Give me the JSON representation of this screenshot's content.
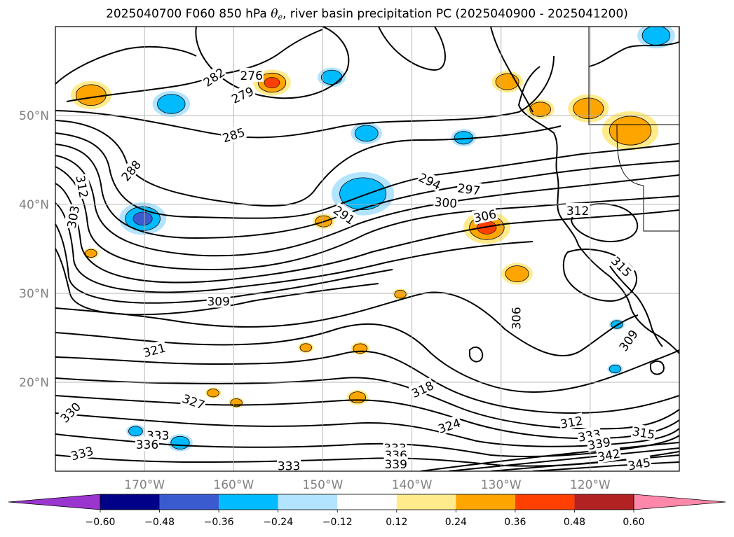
{
  "title": {
    "prefix": "2025040700 F060 850 hPa ",
    "theta": "θ",
    "sub": "e",
    "suffix": ", river basin precipitation PC (2025040900 - 2025041200)"
  },
  "chart_data": {
    "type": "contour-map",
    "projection": "PlateCarree",
    "lon_range": [
      -180,
      -110
    ],
    "lat_range": [
      10,
      60
    ],
    "lon_ticks": [
      {
        "lon": -170,
        "label": "170°W"
      },
      {
        "lon": -160,
        "label": "160°W"
      },
      {
        "lon": -150,
        "label": "150°W"
      },
      {
        "lon": -140,
        "label": "140°W"
      },
      {
        "lon": -130,
        "label": "130°W"
      },
      {
        "lon": -120,
        "label": "120°W"
      }
    ],
    "lat_ticks": [
      {
        "lat": 20,
        "label": "20°N"
      },
      {
        "lat": 30,
        "label": "30°N"
      },
      {
        "lat": 40,
        "label": "40°N"
      },
      {
        "lat": 50,
        "label": "50°N"
      }
    ],
    "grid": true,
    "contour_labels": [
      {
        "text": "276",
        "lon": -158,
        "lat": 54.5,
        "rot": 0
      },
      {
        "text": "279",
        "lon": -159,
        "lat": 52.3,
        "rot": 25
      },
      {
        "text": "282",
        "lon": -162.2,
        "lat": 54.3,
        "rot": 35
      },
      {
        "text": "285",
        "lon": -160,
        "lat": 47.8,
        "rot": 18
      },
      {
        "text": "288",
        "lon": -171.5,
        "lat": 43.8,
        "rot": 50
      },
      {
        "text": "291",
        "lon": -147.6,
        "lat": 38.8,
        "rot": -35
      },
      {
        "text": "294",
        "lon": -138,
        "lat": 42.6,
        "rot": -25
      },
      {
        "text": "297",
        "lon": -133.6,
        "lat": 41.7,
        "rot": -8
      },
      {
        "text": "300",
        "lon": -136.2,
        "lat": 40.2,
        "rot": -5
      },
      {
        "text": "303",
        "lon": -178,
        "lat": 38.6,
        "rot": 80
      },
      {
        "text": "306",
        "lon": -131.8,
        "lat": 38.7,
        "rot": 12
      },
      {
        "text": "306",
        "lon": -128.3,
        "lat": 27.2,
        "rot": 90
      },
      {
        "text": "309",
        "lon": -161.7,
        "lat": 29.1,
        "rot": 0
      },
      {
        "text": "309",
        "lon": -115.7,
        "lat": 24.7,
        "rot": 55
      },
      {
        "text": "312",
        "lon": -177,
        "lat": 42.0,
        "rot": -80
      },
      {
        "text": "312",
        "lon": -121.4,
        "lat": 39.3,
        "rot": 0
      },
      {
        "text": "312",
        "lon": -122.1,
        "lat": 15.5,
        "rot": 10
      },
      {
        "text": "315",
        "lon": -116.5,
        "lat": 33.0,
        "rot": -45
      },
      {
        "text": "315",
        "lon": -114.0,
        "lat": 14.3,
        "rot": -10
      },
      {
        "text": "318",
        "lon": -138.8,
        "lat": 19.2,
        "rot": 25
      },
      {
        "text": "321",
        "lon": -168.9,
        "lat": 23.6,
        "rot": 15
      },
      {
        "text": "324",
        "lon": -135.8,
        "lat": 15.1,
        "rot": 18
      },
      {
        "text": "327",
        "lon": -164.5,
        "lat": 17.8,
        "rot": -20
      },
      {
        "text": "330",
        "lon": -178.3,
        "lat": 16.6,
        "rot": 45
      },
      {
        "text": "333",
        "lon": -168.5,
        "lat": 14.0,
        "rot": 0
      },
      {
        "text": "333",
        "lon": -177.0,
        "lat": 12.0,
        "rot": 15
      },
      {
        "text": "333",
        "lon": -153.8,
        "lat": 10.6,
        "rot": 0
      },
      {
        "text": "333",
        "lon": -141.9,
        "lat": 12.6,
        "rot": 0
      },
      {
        "text": "333",
        "lon": -120.1,
        "lat": 14.0,
        "rot": 10
      },
      {
        "text": "336",
        "lon": -169.7,
        "lat": 13.0,
        "rot": 0
      },
      {
        "text": "336",
        "lon": -141.8,
        "lat": 11.8,
        "rot": 0
      },
      {
        "text": "339",
        "lon": -141.8,
        "lat": 10.8,
        "rot": 0
      },
      {
        "text": "339",
        "lon": -119.0,
        "lat": 13.1,
        "rot": 10
      },
      {
        "text": "342",
        "lon": -117.9,
        "lat": 11.8,
        "rot": 10
      },
      {
        "text": "345",
        "lon": -114.5,
        "lat": 10.8,
        "rot": 10
      }
    ],
    "precip_pc_patches": [
      {
        "lon": -167,
        "lat": 51.3,
        "r": 1.2,
        "level": "-0.36"
      },
      {
        "lon": -176,
        "lat": 52.3,
        "r": 1.3,
        "level": "0.36"
      },
      {
        "lon": -149,
        "lat": 54.3,
        "r": 0.9,
        "level": "-0.36"
      },
      {
        "lon": -170.2,
        "lat": 38.4,
        "r": 1.5,
        "level": "-0.48"
      },
      {
        "lon": -145.5,
        "lat": 41.2,
        "r": 2.0,
        "level": "-0.36"
      },
      {
        "lon": -155.7,
        "lat": 53.7,
        "r": 1.2,
        "level": "0.48"
      },
      {
        "lon": -131.6,
        "lat": 37.4,
        "r": 1.5,
        "level": "0.48"
      },
      {
        "lon": -129.3,
        "lat": 53.8,
        "r": 1.0,
        "level": "0.36"
      },
      {
        "lon": -125.6,
        "lat": 50.7,
        "r": 0.9,
        "level": "0.36"
      },
      {
        "lon": -120.2,
        "lat": 50.8,
        "r": 1.3,
        "level": "0.36"
      },
      {
        "lon": -115.5,
        "lat": 48.3,
        "r": 1.8,
        "level": "0.36"
      },
      {
        "lon": -149.9,
        "lat": 38.1,
        "r": 0.7,
        "level": "0.36"
      },
      {
        "lon": -145.1,
        "lat": 48.0,
        "r": 1.0,
        "level": "-0.24"
      },
      {
        "lon": -134.2,
        "lat": 47.5,
        "r": 0.8,
        "level": "-0.36"
      },
      {
        "lon": -112.6,
        "lat": 59.0,
        "r": 1.2,
        "level": "-0.24"
      },
      {
        "lon": -117.0,
        "lat": 26.5,
        "r": 0.5,
        "level": "-0.24"
      },
      {
        "lon": -117.2,
        "lat": 21.5,
        "r": 0.5,
        "level": "-0.36"
      },
      {
        "lon": -145.8,
        "lat": 23.8,
        "r": 0.6,
        "level": "0.36"
      },
      {
        "lon": -166.0,
        "lat": 13.2,
        "r": 0.8,
        "level": "-0.24"
      },
      {
        "lon": -171.0,
        "lat": 14.5,
        "r": 0.6,
        "level": "-0.24"
      },
      {
        "lon": -128.2,
        "lat": 32.2,
        "r": 1.0,
        "level": "0.24"
      },
      {
        "lon": -176.0,
        "lat": 34.5,
        "r": 0.5,
        "level": "0.24"
      },
      {
        "lon": -141.3,
        "lat": 29.9,
        "r": 0.5,
        "level": "0.24"
      },
      {
        "lon": -151.9,
        "lat": 23.9,
        "r": 0.5,
        "level": "0.24"
      },
      {
        "lon": -146.1,
        "lat": 18.3,
        "r": 0.7,
        "level": "0.24"
      },
      {
        "lon": -159.7,
        "lat": 17.7,
        "r": 0.5,
        "level": "0.24"
      },
      {
        "lon": -162.3,
        "lat": 18.8,
        "r": 0.5,
        "level": "0.24"
      }
    ],
    "colorbar": {
      "levels": [
        -0.6,
        -0.48,
        -0.36,
        -0.24,
        -0.12,
        0.12,
        0.24,
        0.36,
        0.48,
        0.6
      ],
      "tick_labels": [
        "−0.60",
        "−0.48",
        "−0.36",
        "−0.24",
        "−0.12",
        "0.12",
        "0.24",
        "0.36",
        "0.48",
        "0.60"
      ],
      "colors": [
        "#9a35cf",
        "#000088",
        "#3a5bd0",
        "#00bbff",
        "#b2e3ff",
        "#ffffff",
        "#ffeb8c",
        "#ffa500",
        "#ff4000",
        "#b22222",
        "#ff88aa"
      ],
      "extend": "both"
    },
    "colors": {
      "land_border": "#000000",
      "grid": "#b0b0b0",
      "contour": "#000000"
    }
  }
}
